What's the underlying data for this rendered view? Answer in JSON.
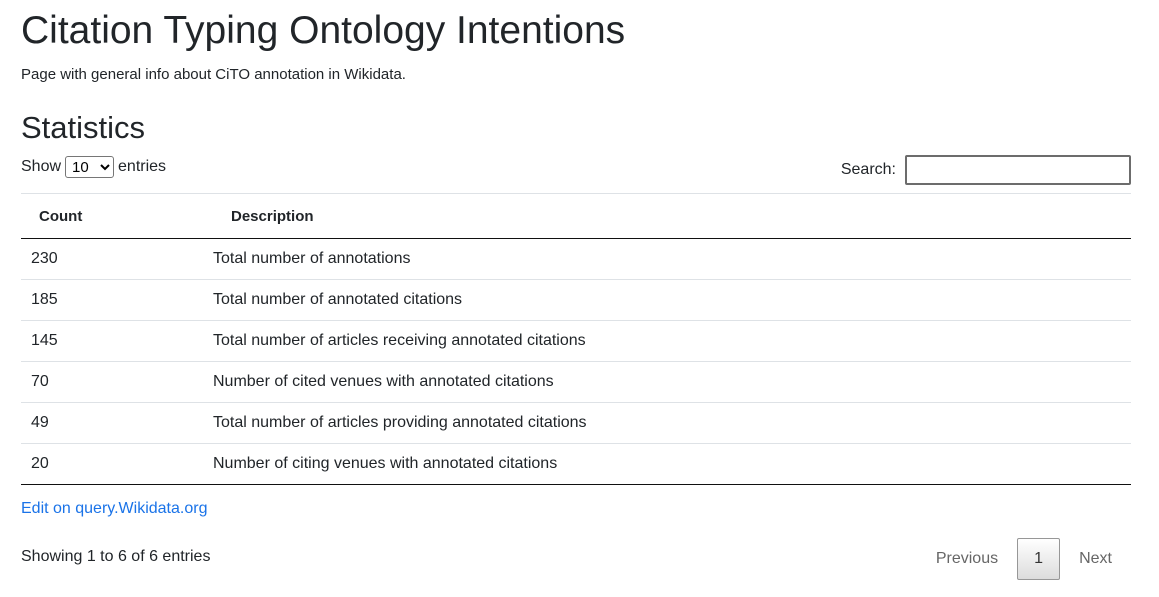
{
  "header": {
    "title": "Citation Typing Ontology Intentions",
    "subtitle": "Page with general info about CiTO annotation in Wikidata."
  },
  "section": {
    "title": "Statistics"
  },
  "table_controls": {
    "show_label": "Show",
    "entries_label": "entries",
    "length_value": "10",
    "search_label": "Search:",
    "search_value": ""
  },
  "table": {
    "columns": [
      "Count",
      "Description"
    ],
    "rows": [
      {
        "count": "230",
        "description": "Total number of annotations"
      },
      {
        "count": "185",
        "description": "Total number of annotated citations"
      },
      {
        "count": "145",
        "description": "Total number of articles receiving annotated citations"
      },
      {
        "count": "70",
        "description": "Number of cited venues with annotated citations"
      },
      {
        "count": "49",
        "description": "Total number of articles providing annotated citations"
      },
      {
        "count": "20",
        "description": "Number of citing venues with annotated citations"
      }
    ]
  },
  "footer": {
    "edit_link": "Edit on query.Wikidata.org",
    "info": "Showing 1 to 6 of 6 entries",
    "prev": "Previous",
    "current_page": "1",
    "next": "Next"
  },
  "colors": {
    "link": "#1a73e8",
    "text": "#212529"
  }
}
